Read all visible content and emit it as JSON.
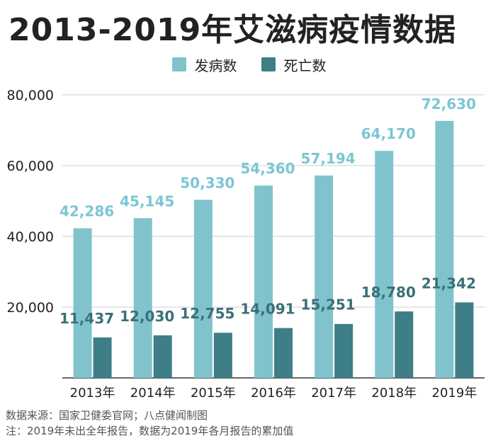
{
  "title": "2013-2019年艾滋病疫情数据",
  "colors": {
    "incidence": "#80c3cd",
    "deaths": "#3e7e87",
    "incidence_label": "#7cc6d4",
    "deaths_label": "#3b7079",
    "grid": "#cccccc",
    "text": "#222222"
  },
  "chart_data": {
    "type": "bar",
    "title": "2013-2019年艾滋病疫情数据",
    "xlabel": "",
    "ylabel": "",
    "categories": [
      "2013年",
      "2014年",
      "2015年",
      "2016年",
      "2017年",
      "2018年",
      "2019年"
    ],
    "series": [
      {
        "name": "发病数",
        "values": [
          42286,
          45145,
          50330,
          54360,
          57194,
          64170,
          72630
        ],
        "labels": [
          "42,286",
          "45,145",
          "50,330",
          "54,360",
          "57,194",
          "64,170",
          "72,630"
        ]
      },
      {
        "name": "死亡数",
        "values": [
          11437,
          12030,
          12755,
          14091,
          15251,
          18780,
          21342
        ],
        "labels": [
          "11,437",
          "12,030",
          "12,755",
          "14,091",
          "15,251",
          "18,780",
          "21,342"
        ]
      }
    ],
    "ylim": [
      0,
      80000
    ],
    "yticks": [
      20000,
      40000,
      60000,
      80000
    ],
    "ytick_labels": [
      "20,000",
      "40,000",
      "60,000",
      "80,000"
    ],
    "grid": true,
    "legend": "top-center"
  },
  "footnotes": {
    "source": "数据来源：国家卫健委官网；八点健闻制图",
    "note": "注：2019年未出全年报告，数据为2019年各月报告的累加值"
  }
}
